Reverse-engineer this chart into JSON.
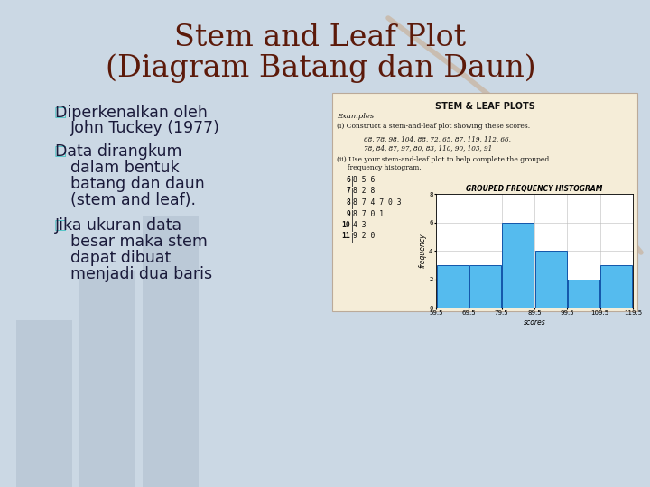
{
  "title_line1": "Stem and Leaf Plot",
  "title_line2": "(Diagram Batang dan Daun)",
  "title_color": "#5C1A0A",
  "bg_color": "#CBD8E4",
  "bullet_color": "#40C0C0",
  "bullets": [
    "□Diperkenalkan oleh\n    John Tuckey (1977)",
    "□Data dirangkum\n    dalam bentuk\n    batang dan daun\n    (stem and leaf).",
    "□Jika ukuran data\n    besar maka stem\n    dapat dibuat\n    menjadi dua baris"
  ],
  "body_text_color": "#1A1A3A",
  "stem_leaf_title": "STEM & LEAF PLOTS",
  "examples_label": "Examples",
  "example_i_text": "(i) Construct a stem-and-leaf plot showing these scores.",
  "data_values_line1": "68, 78, 98, 104, 88, 72, 65, 87, 119, 112, 66,",
  "data_values_line2": "78, 84, 87, 97, 80, 83, 110, 90, 103, 91",
  "example_ii_text1": "(ii) Use your stem-and-leaf plot to help complete the grouped",
  "example_ii_text2": "     frequency histogram.",
  "stem_data": [
    {
      "stem": "6",
      "leaves": "8 5 6"
    },
    {
      "stem": "7",
      "leaves": "8 2 8"
    },
    {
      "stem": "8",
      "leaves": "8 7 4 7 0 3"
    },
    {
      "stem": "9",
      "leaves": "8 7 0 1"
    },
    {
      "stem": "10",
      "leaves": "4 3"
    },
    {
      "stem": "11",
      "leaves": "9 2 0"
    }
  ],
  "hist_title": "GROUPED FREQUENCY HISTOGRAM",
  "hist_bins": [
    59.5,
    69.5,
    79.5,
    89.5,
    99.5,
    109.5,
    119.5
  ],
  "hist_values": [
    3,
    3,
    6,
    4,
    2,
    3
  ],
  "hist_bar_color": "#55BBEE",
  "hist_edge_color": "#1155AA",
  "hist_xlabel": "scores",
  "hist_ylabel": "frequency",
  "hist_ylim": [
    0,
    8
  ],
  "hist_yticks": [
    0,
    2,
    4,
    6,
    8
  ],
  "panel_facecolor": "#F5EDD8",
  "deco_bar_color": "#A8B8C8",
  "deco_bar_alpha": 0.45,
  "deco_arrow_color": "#C8A888",
  "deco_arrow_alpha": 0.55
}
